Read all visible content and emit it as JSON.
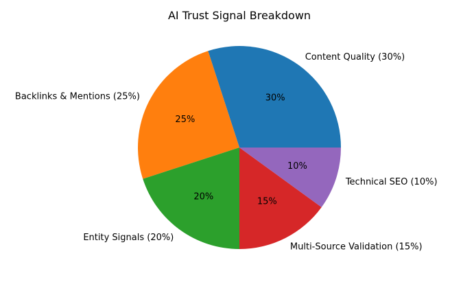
{
  "chart_data": {
    "type": "pie",
    "title": "AI Trust Signal Breakdown",
    "categories": [
      "Content Quality (30%)",
      "Backlinks & Mentions (25%)",
      "Entity Signals (20%)",
      "Multi-Source Validation (15%)",
      "Technical SEO (10%)"
    ],
    "values": [
      30,
      25,
      20,
      15,
      10
    ],
    "pct_labels": [
      "30%",
      "25%",
      "20%",
      "15%",
      "10%"
    ],
    "colors": [
      "#1f77b4",
      "#ff7f0e",
      "#2ca02c",
      "#d62728",
      "#9467bd"
    ],
    "start_angle": 0,
    "direction": "counterclockwise"
  }
}
